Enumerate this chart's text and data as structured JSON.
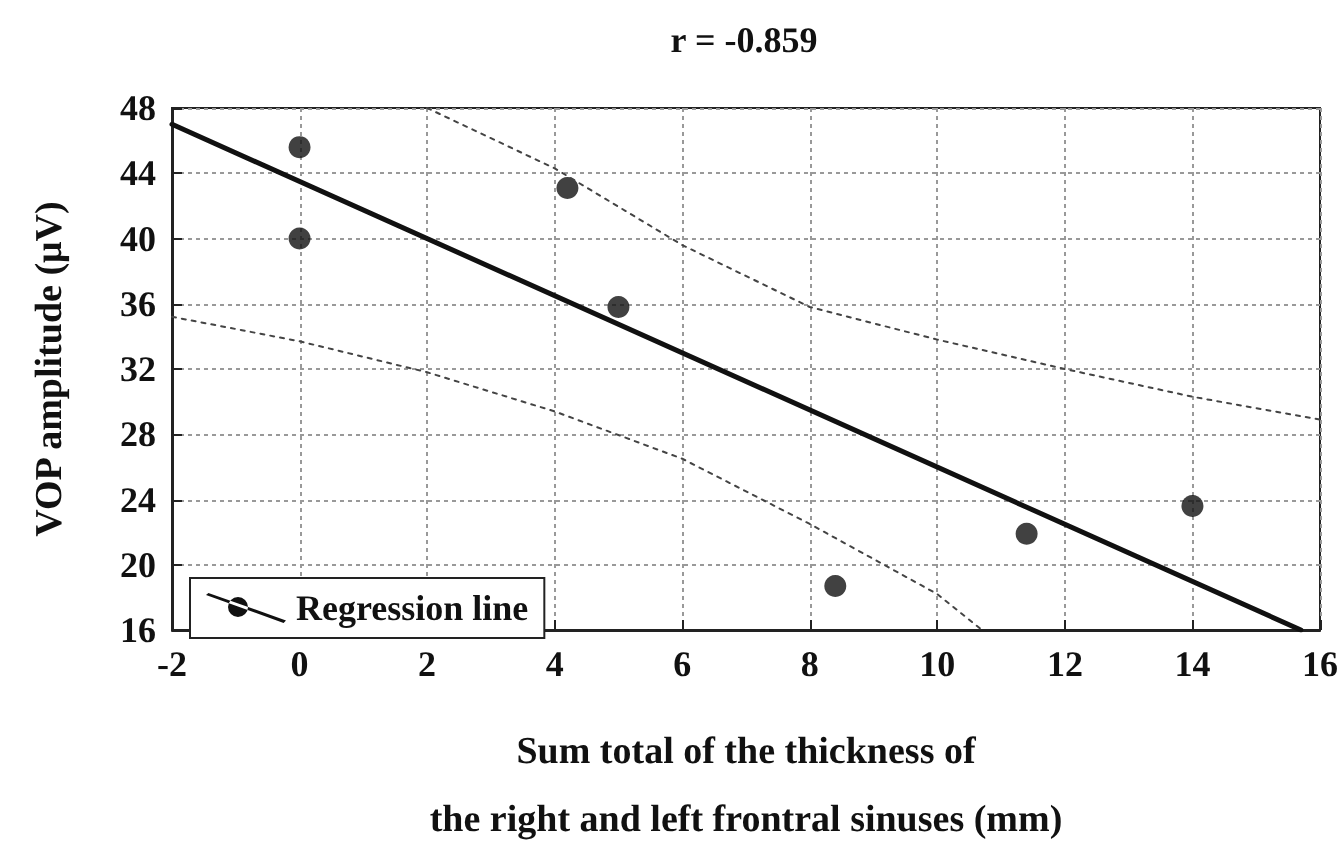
{
  "chart_data": {
    "type": "scatter",
    "title": "r = -0.859",
    "xlabel": "Sum total of the thickness of\nthe right and left frontral sinuses (mm)",
    "ylabel": "VOP amplitude (μV)",
    "xlim": [
      -2,
      16
    ],
    "xticks": [
      -2,
      0,
      2,
      4,
      6,
      8,
      10,
      12,
      14,
      16
    ],
    "ylim": [
      16,
      48
    ],
    "yticks": [
      16,
      20,
      24,
      28,
      32,
      36,
      40,
      44,
      48
    ],
    "grid": true,
    "legend": "bottom left",
    "series": [
      {
        "color": "#111111",
        "marker": "circle",
        "x": [
          0,
          0,
          4.2,
          5,
          8.4,
          11.4,
          14
        ],
        "values": [
          45.6,
          40,
          43.1,
          35.8,
          18.7,
          21.9,
          23.6
        ]
      },
      {
        "type": "line",
        "name": "Regression line",
        "color": "#111111",
        "marker": "none",
        "line_style": "solid",
        "x": [
          -2,
          15.7
        ],
        "values": [
          47,
          16
        ]
      },
      {
        "type": "line",
        "color": "#444444",
        "marker": "none",
        "line_style": "dotted",
        "x": [
          2,
          4,
          6,
          8,
          10,
          12,
          14,
          16
        ],
        "values": [
          48,
          44.3,
          39.6,
          35.8,
          33.8,
          32,
          30.3,
          28.9
        ]
      },
      {
        "type": "line",
        "color": "#444444",
        "marker": "none",
        "line_style": "dotted",
        "x": [
          -2,
          0,
          2,
          4,
          6,
          8,
          10,
          10.7
        ],
        "values": [
          35.2,
          33.7,
          31.8,
          29.4,
          26.5,
          22.5,
          18.2,
          16
        ]
      }
    ]
  }
}
